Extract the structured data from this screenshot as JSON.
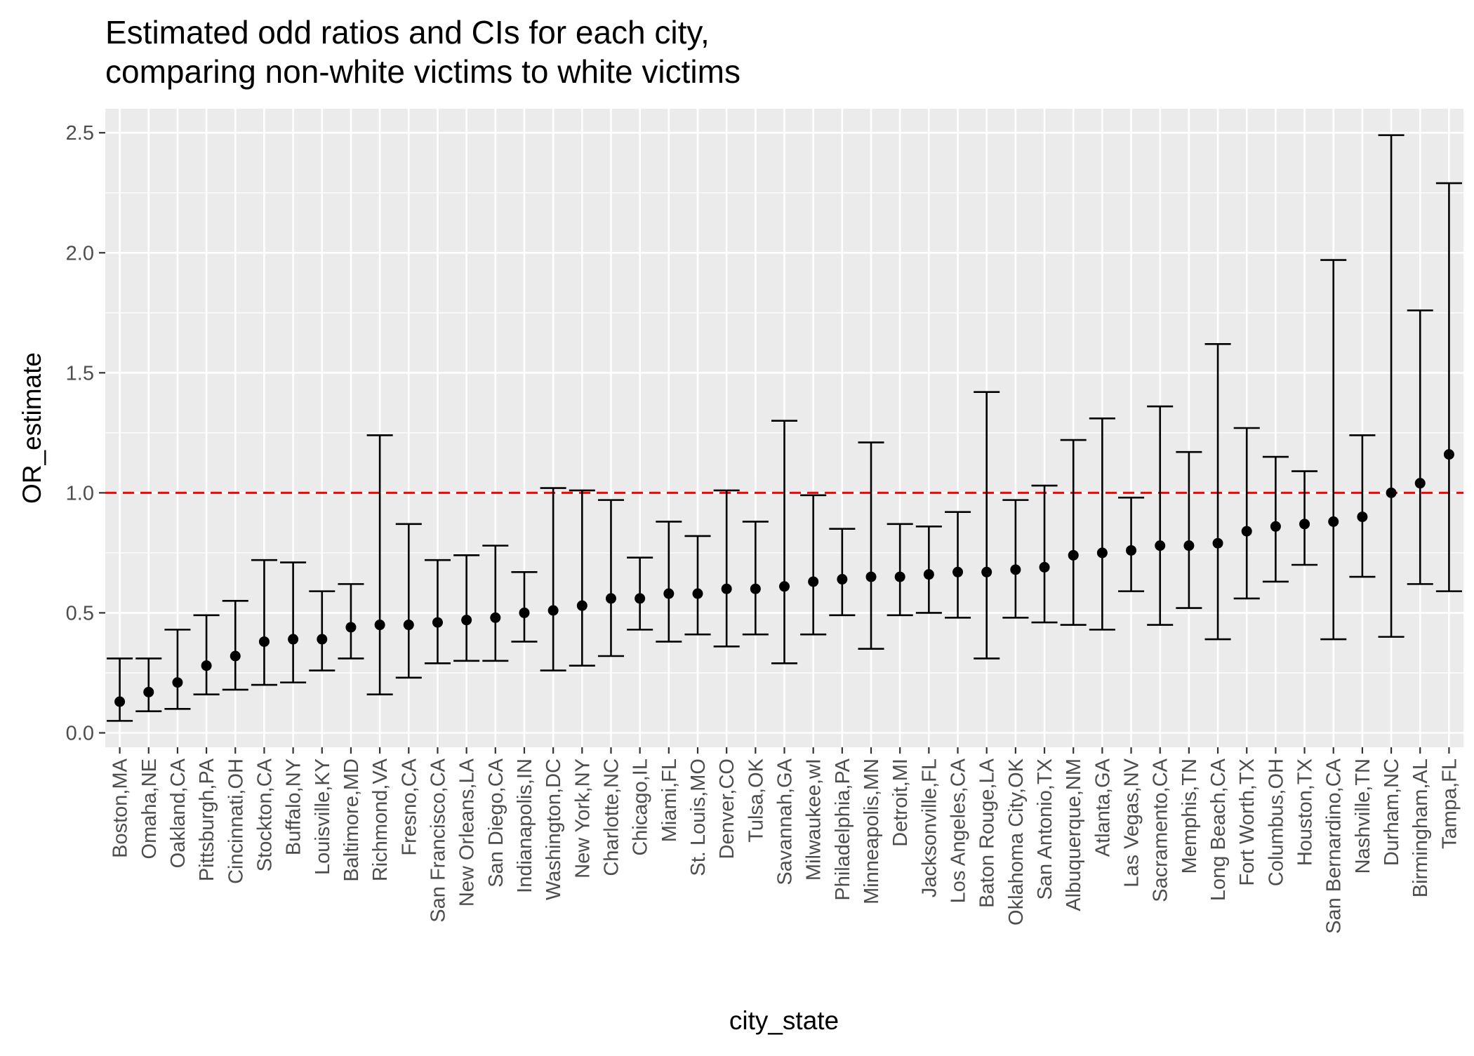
{
  "chart_data": {
    "type": "errorbar",
    "title_lines": [
      "Estimated odd ratios and CIs for each city,",
      "comparing non-white victims to white victims"
    ],
    "xlabel": "city_state",
    "ylabel": "OR_estimate",
    "ylim": [
      -0.06,
      2.6
    ],
    "y_ticks": [
      0.0,
      0.5,
      1.0,
      1.5,
      2.0,
      2.5
    ],
    "y_tick_labels": [
      "0.0",
      "0.5",
      "1.0",
      "1.5",
      "2.0",
      "2.5"
    ],
    "reference_line": {
      "y": 1.0,
      "color": "#ff0000",
      "style": "dashed"
    },
    "grid": true,
    "legend": "none",
    "colors": {
      "panel_background": "#ebebeb",
      "grid": "#ffffff",
      "point": "#000000",
      "errorbar": "#000000",
      "tick_label": "#4d4d4d"
    },
    "categories": [
      "Boston,MA",
      "Omaha,NE",
      "Oakland,CA",
      "Pittsburgh,PA",
      "Cincinnati,OH",
      "Stockton,CA",
      "Buffalo,NY",
      "Louisville,KY",
      "Baltimore,MD",
      "Richmond,VA",
      "Fresno,CA",
      "San Francisco,CA",
      "New Orleans,LA",
      "San Diego,CA",
      "Indianapolis,IN",
      "Washington,DC",
      "New York,NY",
      "Charlotte,NC",
      "Chicago,IL",
      "Miami,FL",
      "St. Louis,MO",
      "Denver,CO",
      "Tulsa,OK",
      "Savannah,GA",
      "Milwaukee,wI",
      "Philadelphia,PA",
      "Minneapolis,MN",
      "Detroit,MI",
      "Jacksonville,FL",
      "Los Angeles,CA",
      "Baton Rouge,LA",
      "Oklahoma City,OK",
      "San Antonio,TX",
      "Albuquerque,NM",
      "Atlanta,GA",
      "Las Vegas,NV",
      "Sacramento,CA",
      "Memphis,TN",
      "Long Beach,CA",
      "Fort Worth,TX",
      "Columbus,OH",
      "Houston,TX",
      "San Bernardino,CA",
      "Nashville,TN",
      "Durham,NC",
      "Birmingham,AL",
      "Tampa,FL"
    ],
    "estimate": [
      0.13,
      0.17,
      0.21,
      0.28,
      0.32,
      0.38,
      0.39,
      0.39,
      0.44,
      0.45,
      0.45,
      0.46,
      0.47,
      0.48,
      0.5,
      0.51,
      0.53,
      0.56,
      0.56,
      0.58,
      0.58,
      0.6,
      0.6,
      0.61,
      0.63,
      0.64,
      0.65,
      0.65,
      0.66,
      0.67,
      0.67,
      0.68,
      0.69,
      0.74,
      0.75,
      0.76,
      0.78,
      0.78,
      0.79,
      0.84,
      0.86,
      0.87,
      0.88,
      0.9,
      1.0,
      1.04,
      1.16
    ],
    "ci_low": [
      0.05,
      0.09,
      0.1,
      0.16,
      0.18,
      0.2,
      0.21,
      0.26,
      0.31,
      0.16,
      0.23,
      0.29,
      0.3,
      0.3,
      0.38,
      0.26,
      0.28,
      0.32,
      0.43,
      0.38,
      0.41,
      0.36,
      0.41,
      0.29,
      0.41,
      0.49,
      0.35,
      0.49,
      0.5,
      0.48,
      0.31,
      0.48,
      0.46,
      0.45,
      0.43,
      0.59,
      0.45,
      0.52,
      0.39,
      0.56,
      0.63,
      0.7,
      0.39,
      0.65,
      0.4,
      0.62,
      0.59
    ],
    "ci_high": [
      0.31,
      0.31,
      0.43,
      0.49,
      0.55,
      0.72,
      0.71,
      0.59,
      0.62,
      1.24,
      0.87,
      0.72,
      0.74,
      0.78,
      0.67,
      1.02,
      1.01,
      0.97,
      0.73,
      0.88,
      0.82,
      1.01,
      0.88,
      1.3,
      0.99,
      0.85,
      1.21,
      0.87,
      0.86,
      0.92,
      1.42,
      0.97,
      1.03,
      1.22,
      1.31,
      0.98,
      1.36,
      1.17,
      1.62,
      1.27,
      1.15,
      1.09,
      1.97,
      1.24,
      2.49,
      1.76,
      2.29
    ]
  }
}
